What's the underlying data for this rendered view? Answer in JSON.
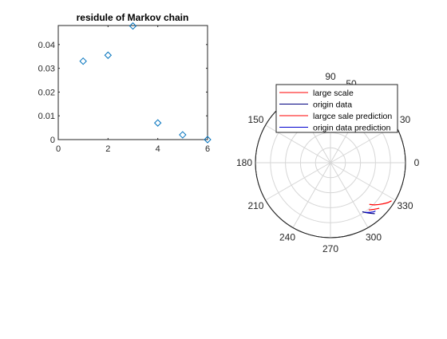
{
  "chart_data": [
    {
      "type": "scatter",
      "title": "residule of Markov chain",
      "xlabel": "",
      "ylabel": "",
      "xlim": [
        0,
        6
      ],
      "ylim": [
        0,
        0.048
      ],
      "xticks": [
        0,
        2,
        4,
        6
      ],
      "xtick_labels": [
        "0",
        "2",
        "4",
        "6"
      ],
      "yticks": [
        0,
        0.01,
        0.02,
        0.03,
        0.04
      ],
      "ytick_labels": [
        "0",
        "0.01",
        "0.02",
        "0.03",
        "0.04"
      ],
      "grid": false,
      "marker": "diamond",
      "marker_color": "#0072BD",
      "x": [
        1,
        2,
        3,
        4,
        5,
        6
      ],
      "y": [
        0.033,
        0.0355,
        0.0478,
        0.007,
        0.002,
        0.0
      ]
    },
    {
      "type": "polar-line",
      "title": "",
      "rlim": [
        0,
        50
      ],
      "r_tick_labels": [
        "50"
      ],
      "theta_ticks": [
        0,
        30,
        60,
        90,
        120,
        150,
        180,
        210,
        240,
        270,
        300,
        330
      ],
      "theta_tick_labels": [
        "0",
        "30",
        "60",
        "90",
        "120",
        "150",
        "180",
        "210",
        "240",
        "270",
        "300",
        "330"
      ],
      "grid": true,
      "legend_position": "top-right",
      "series": [
        {
          "name": "large scale",
          "color": "#ff0000",
          "theta": [
            313,
            316,
            319,
            322,
            325,
            328
          ],
          "r": [
            38.0,
            40.5,
            42.5,
            44.5,
            46.5,
            48.0
          ]
        },
        {
          "name": "origin data",
          "color": "#000080",
          "theta": [
            303,
            305,
            307,
            309,
            311
          ],
          "r": [
            39.0,
            40.5,
            42.0,
            43.5,
            45.0
          ]
        },
        {
          "name": "largce sale prediction",
          "color": "#ff0000",
          "theta": [
            309,
            311,
            313,
            315,
            317
          ],
          "r": [
            40.5,
            41.5,
            42.5,
            43.5,
            44.5
          ]
        },
        {
          "name": "origin data prediction",
          "color": "#0000cd",
          "theta": [
            305,
            307,
            309,
            311,
            313
          ],
          "r": [
            40.5,
            41.5,
            42.5,
            43.5,
            44.0
          ]
        }
      ]
    }
  ]
}
